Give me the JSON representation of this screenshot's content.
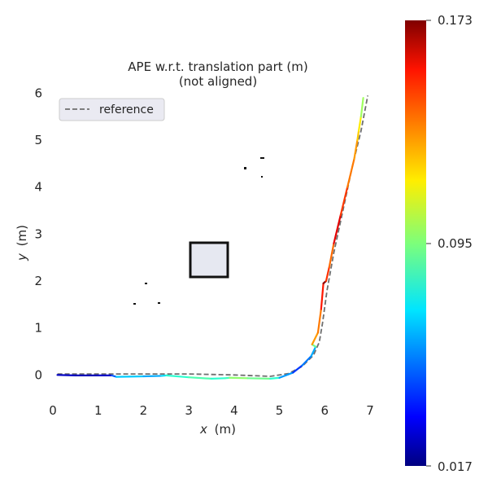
{
  "chart_data": {
    "type": "line",
    "title_line1": "APE w.r.t. translation part (m)",
    "title_line2": "(not aligned)",
    "xlabel_var": "x",
    "xlabel_unit": "(m)",
    "ylabel_var": "y",
    "ylabel_unit": "(m)",
    "xlim": [
      0,
      7
    ],
    "ylim": [
      -0.55,
      6.25
    ],
    "xticks": [
      "0",
      "1",
      "2",
      "3",
      "4",
      "5",
      "6",
      "7"
    ],
    "yticks": [
      "0",
      "1",
      "2",
      "3",
      "4",
      "5",
      "6"
    ],
    "grid": false,
    "legend": {
      "placement": "top-left",
      "entries": [
        "reference"
      ]
    },
    "reference": {
      "name": "reference",
      "style": "dashed",
      "color": "#6f6f6f",
      "x": [
        0.1,
        1.0,
        2.0,
        3.0,
        4.0,
        4.8,
        5.2,
        5.5,
        5.75,
        5.88,
        5.95,
        6.05,
        6.2,
        6.4,
        6.6,
        6.8,
        6.95
      ],
      "y": [
        0.02,
        0.02,
        0.02,
        0.02,
        0.0,
        -0.03,
        0.03,
        0.18,
        0.42,
        0.7,
        1.1,
        1.8,
        2.6,
        3.5,
        4.4,
        5.2,
        5.95
      ]
    },
    "estimate": {
      "x": [
        0.1,
        0.5,
        1.0,
        1.3,
        1.4,
        2.0,
        2.4,
        2.5,
        3.0,
        3.5,
        3.8,
        3.9,
        4.3,
        4.8,
        5.0,
        5.3,
        5.5,
        5.7,
        5.8,
        5.72,
        5.85,
        5.92,
        5.97,
        6.03,
        6.1,
        6.2,
        6.35,
        6.5,
        6.65,
        6.72,
        6.75,
        6.8,
        6.85
      ],
      "y": [
        0.0,
        -0.01,
        -0.01,
        -0.01,
        -0.04,
        -0.03,
        -0.02,
        -0.01,
        -0.05,
        -0.08,
        -0.07,
        -0.06,
        -0.07,
        -0.08,
        -0.06,
        0.05,
        0.2,
        0.4,
        0.6,
        0.65,
        0.9,
        1.4,
        1.95,
        2.0,
        2.3,
        2.8,
        3.4,
        4.0,
        4.6,
        5.0,
        5.2,
        5.5,
        5.9
      ],
      "ape": [
        0.03,
        0.025,
        0.026,
        0.03,
        0.07,
        0.065,
        0.06,
        0.08,
        0.085,
        0.09,
        0.075,
        0.095,
        0.1,
        0.085,
        0.08,
        0.04,
        0.05,
        0.06,
        0.065,
        0.12,
        0.14,
        0.13,
        0.17,
        0.172,
        0.12,
        0.155,
        0.16,
        0.13,
        0.14,
        0.12,
        0.125,
        0.11,
        0.09
      ]
    },
    "colorbar": {
      "min_label": "0.017",
      "mid_label": "0.095",
      "max_label": "0.173",
      "min": 0.017,
      "max": 0.173,
      "colormap": "jet"
    }
  }
}
